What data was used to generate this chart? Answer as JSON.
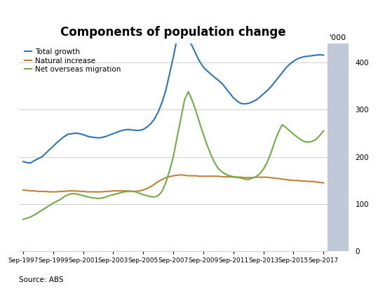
{
  "title": "Components of population change",
  "ylabel_right": "'000",
  "source": "Source: ABS",
  "x_labels": [
    "Sep-1997",
    "Sep-1999",
    "Sep-2001",
    "Sep-2003",
    "Sep-2005",
    "Sep-2007",
    "Sep-2009",
    "Sep-2011",
    "Sep-2013",
    "Sep-2015",
    "Sep-2017"
  ],
  "ylim": [
    0,
    440
  ],
  "yticks": [
    0,
    100,
    200,
    300,
    400
  ],
  "legend": [
    "Total growth",
    "Natural increase",
    "Net overseas migration"
  ],
  "colors": {
    "total_growth": "#2E75B6",
    "natural_increase": "#C0813A",
    "net_migration": "#70AD47"
  },
  "background_color": "#ffffff",
  "grid_color": "#d0d0d0",
  "band_color": "#BFC9D8",
  "total_growth": [
    190,
    188,
    187,
    192,
    196,
    200,
    207,
    215,
    222,
    230,
    237,
    243,
    248,
    249,
    250,
    249,
    247,
    244,
    242,
    241,
    240,
    241,
    243,
    246,
    249,
    252,
    255,
    257,
    258,
    257,
    256,
    256,
    258,
    263,
    270,
    280,
    295,
    315,
    340,
    375,
    410,
    450,
    470,
    462,
    450,
    435,
    418,
    402,
    390,
    382,
    375,
    368,
    362,
    355,
    345,
    335,
    325,
    318,
    313,
    312,
    313,
    316,
    320,
    326,
    333,
    340,
    348,
    358,
    368,
    378,
    388,
    396,
    402,
    407,
    410,
    412,
    413,
    414,
    415,
    416,
    415
  ],
  "natural_increase": [
    130,
    129,
    128,
    128,
    127,
    127,
    127,
    126,
    126,
    126,
    127,
    127,
    128,
    128,
    128,
    127,
    127,
    126,
    126,
    126,
    126,
    126,
    127,
    127,
    128,
    128,
    128,
    128,
    128,
    127,
    127,
    128,
    130,
    133,
    137,
    142,
    148,
    152,
    156,
    158,
    160,
    161,
    162,
    161,
    160,
    160,
    160,
    159,
    159,
    159,
    159,
    159,
    159,
    158,
    158,
    158,
    157,
    157,
    157,
    156,
    156,
    156,
    157,
    157,
    157,
    157,
    156,
    155,
    154,
    153,
    152,
    151,
    150,
    150,
    149,
    149,
    148,
    148,
    147,
    146,
    145
  ],
  "net_migration": [
    68,
    70,
    73,
    77,
    82,
    87,
    92,
    97,
    102,
    106,
    110,
    116,
    120,
    122,
    122,
    120,
    118,
    116,
    114,
    113,
    112,
    113,
    115,
    118,
    120,
    122,
    124,
    126,
    127,
    127,
    126,
    123,
    120,
    118,
    116,
    115,
    118,
    127,
    145,
    170,
    200,
    240,
    280,
    320,
    338,
    320,
    298,
    272,
    248,
    225,
    205,
    188,
    175,
    168,
    163,
    160,
    158,
    157,
    155,
    153,
    152,
    155,
    158,
    164,
    174,
    188,
    208,
    232,
    252,
    268,
    262,
    255,
    248,
    242,
    236,
    232,
    231,
    233,
    237,
    245,
    255
  ],
  "n_pts": 81
}
